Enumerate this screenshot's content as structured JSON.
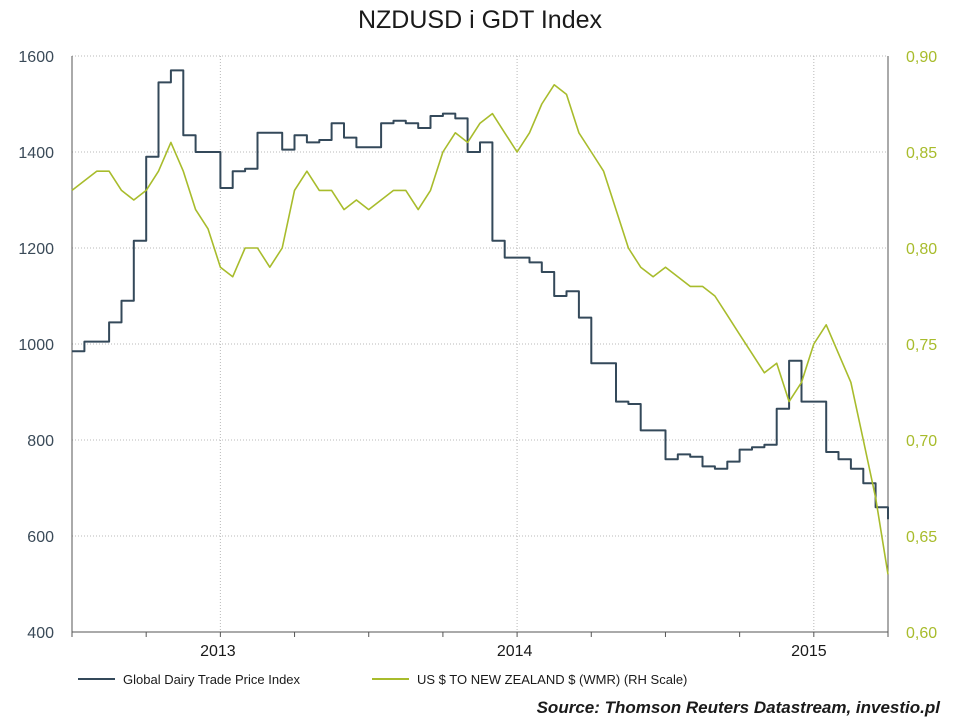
{
  "chart_data": {
    "type": "line",
    "title": "NZDUSD i GDT Index",
    "source_label": "Source:",
    "source_text": "Thomson Reuters Datastream, investio.pl",
    "x_ticks": [
      "2013",
      "2014",
      "2015"
    ],
    "x_range": [
      "2012-07",
      "2015-04"
    ],
    "y_left": {
      "min": 400,
      "max": 1600,
      "ticks": [
        "400",
        "600",
        "800",
        "1000",
        "1200",
        "1400",
        "1600"
      ]
    },
    "y_right": {
      "min": 0.6,
      "max": 0.9,
      "ticks": [
        "0,60",
        "0,65",
        "0,70",
        "0,75",
        "0,80",
        "0,85",
        "0,90"
      ]
    },
    "grid": true,
    "legend_position": "bottom",
    "series": [
      {
        "name": "Global Dairy Trade Price Index",
        "color": "#34495a",
        "axis": "left",
        "step": true,
        "x": [
          0,
          0.5,
          1.0,
          1.5,
          2.0,
          2.5,
          3.0,
          3.5,
          4.0,
          4.5,
          5.0,
          5.5,
          6.0,
          6.5,
          7.0,
          7.5,
          8.0,
          8.5,
          9.0,
          9.5,
          10.0,
          10.5,
          11.0,
          11.5,
          12.0,
          12.5,
          13.0,
          13.5,
          14.0,
          14.5,
          15.0,
          15.5,
          16.0,
          16.5,
          17.0,
          17.5,
          18.0,
          18.5,
          19.0,
          19.5,
          20.0,
          20.5,
          21.0,
          21.5,
          22.0,
          22.5,
          23.0,
          23.5,
          24.0,
          24.5,
          25.0,
          25.5,
          26.0,
          26.5,
          27.0,
          27.5,
          28.0,
          28.5,
          29.0,
          29.5,
          30.0,
          30.5,
          31.0,
          31.5,
          32.0,
          32.5,
          33.0
        ],
        "values": [
          985,
          1005,
          1005,
          1045,
          1090,
          1215,
          1390,
          1545,
          1570,
          1435,
          1400,
          1400,
          1325,
          1360,
          1365,
          1440,
          1440,
          1405,
          1435,
          1420,
          1425,
          1460,
          1430,
          1410,
          1410,
          1460,
          1465,
          1460,
          1450,
          1475,
          1480,
          1470,
          1400,
          1420,
          1215,
          1180,
          1180,
          1170,
          1150,
          1100,
          1110,
          1055,
          960,
          960,
          880,
          875,
          820,
          820,
          760,
          770,
          765,
          745,
          740,
          755,
          780,
          785,
          790,
          865,
          965,
          880,
          880,
          775,
          760,
          740,
          710,
          660,
          635
        ]
      },
      {
        "name": "US $ TO NEW ZEALAND $ (WMR) (RH Scale)",
        "color": "#a8bc2c",
        "axis": "right",
        "step": false,
        "x": [
          0,
          0.5,
          1.0,
          1.5,
          2.0,
          2.5,
          3.0,
          3.5,
          4.0,
          4.5,
          5.0,
          5.5,
          6.0,
          6.5,
          7.0,
          7.5,
          8.0,
          8.5,
          9.0,
          9.5,
          10.0,
          10.5,
          11.0,
          11.5,
          12.0,
          12.5,
          13.0,
          13.5,
          14.0,
          14.5,
          15.0,
          15.5,
          16.0,
          16.5,
          17.0,
          17.5,
          18.0,
          18.5,
          19.0,
          19.5,
          20.0,
          20.5,
          21.0,
          21.5,
          22.0,
          22.5,
          23.0,
          23.5,
          24.0,
          24.5,
          25.0,
          25.5,
          26.0,
          26.5,
          27.0,
          27.5,
          28.0,
          28.5,
          29.0,
          29.5,
          30.0,
          30.5,
          31.0,
          31.5,
          32.0,
          32.5,
          33.0
        ],
        "values": [
          0.83,
          0.835,
          0.84,
          0.84,
          0.83,
          0.825,
          0.83,
          0.84,
          0.855,
          0.84,
          0.82,
          0.81,
          0.79,
          0.785,
          0.8,
          0.8,
          0.79,
          0.8,
          0.83,
          0.84,
          0.83,
          0.83,
          0.82,
          0.825,
          0.82,
          0.825,
          0.83,
          0.83,
          0.82,
          0.83,
          0.85,
          0.86,
          0.855,
          0.865,
          0.87,
          0.86,
          0.85,
          0.86,
          0.875,
          0.885,
          0.88,
          0.86,
          0.85,
          0.84,
          0.82,
          0.8,
          0.79,
          0.785,
          0.79,
          0.785,
          0.78,
          0.78,
          0.775,
          0.765,
          0.755,
          0.745,
          0.735,
          0.74,
          0.72,
          0.73,
          0.75,
          0.76,
          0.745,
          0.73,
          0.7,
          0.67,
          0.63
        ]
      }
    ]
  }
}
